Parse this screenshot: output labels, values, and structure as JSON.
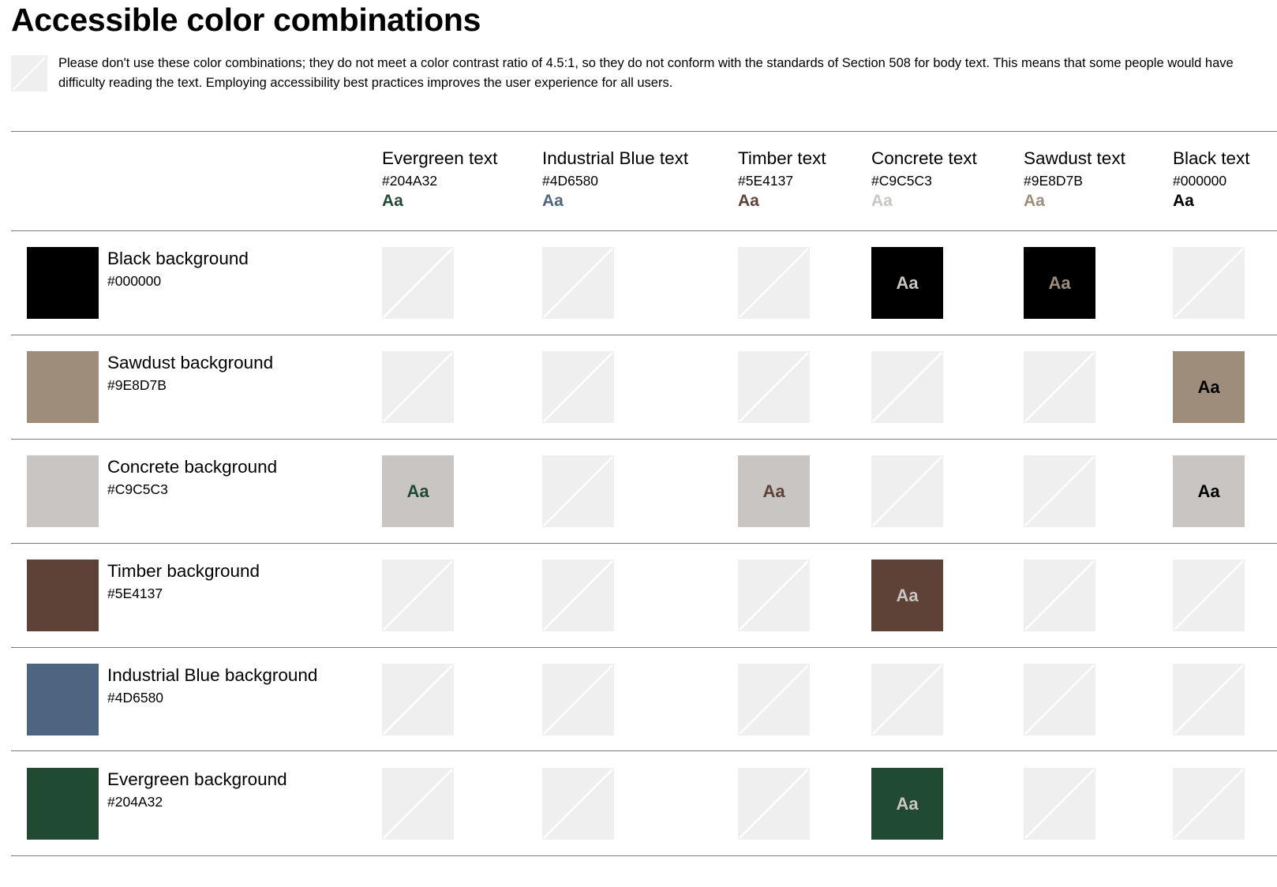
{
  "page": {
    "title": "Accessible color combinations",
    "notice": "Please don't use these color combinations; they do not meet a color contrast ratio of 4.5:1, so they do not conform with the standards of Section 508 for body text. This means that some people would have difficulty reading the text. Employing accessibility best practices improves the user experience for all users.",
    "notice_icon": "not-accessible-swatch-icon"
  },
  "columns": [
    {
      "name": "Evergreen text",
      "hex": "#204A32",
      "sample": "Aa",
      "color": "#204A32"
    },
    {
      "name": "Industrial Blue text",
      "hex": "#4D6580",
      "sample": "Aa",
      "color": "#4D6580"
    },
    {
      "name": "Timber text",
      "hex": "#5E4137",
      "sample": "Aa",
      "color": "#5E4137"
    },
    {
      "name": "Concrete text",
      "hex": "#C9C5C3",
      "sample": "Aa",
      "color": "#C9C5C3"
    },
    {
      "name": "Sawdust text",
      "hex": "#9E8D7B",
      "sample": "Aa",
      "color": "#9E8D7B"
    },
    {
      "name": "Black text",
      "hex": "#000000",
      "sample": "Aa",
      "color": "#000000"
    }
  ],
  "rows": [
    {
      "name": "Black background",
      "hex": "#000000",
      "color": "#000000",
      "cells": [
        {
          "accessible": false
        },
        {
          "accessible": false
        },
        {
          "accessible": false
        },
        {
          "accessible": true,
          "text": "Aa"
        },
        {
          "accessible": true,
          "text": "Aa"
        },
        {
          "accessible": false
        }
      ]
    },
    {
      "name": "Sawdust background",
      "hex": "#9E8D7B",
      "color": "#9E8D7B",
      "cells": [
        {
          "accessible": false
        },
        {
          "accessible": false
        },
        {
          "accessible": false
        },
        {
          "accessible": false
        },
        {
          "accessible": false
        },
        {
          "accessible": true,
          "text": "Aa"
        }
      ]
    },
    {
      "name": "Concrete background",
      "hex": "#C9C5C3",
      "color": "#C9C5C3",
      "cells": [
        {
          "accessible": true,
          "text": "Aa"
        },
        {
          "accessible": false
        },
        {
          "accessible": true,
          "text": "Aa"
        },
        {
          "accessible": false
        },
        {
          "accessible": false
        },
        {
          "accessible": true,
          "text": "Aa"
        }
      ]
    },
    {
      "name": "Timber background",
      "hex": "#5E4137",
      "color": "#5E4137",
      "cells": [
        {
          "accessible": false
        },
        {
          "accessible": false
        },
        {
          "accessible": false
        },
        {
          "accessible": true,
          "text": "Aa"
        },
        {
          "accessible": false
        },
        {
          "accessible": false
        }
      ]
    },
    {
      "name": "Industrial Blue background",
      "hex": "#4D6580",
      "color": "#4D6580",
      "cells": [
        {
          "accessible": false
        },
        {
          "accessible": false
        },
        {
          "accessible": false
        },
        {
          "accessible": false
        },
        {
          "accessible": false
        },
        {
          "accessible": false
        }
      ]
    },
    {
      "name": "Evergreen background",
      "hex": "#204A32",
      "color": "#204A32",
      "cells": [
        {
          "accessible": false
        },
        {
          "accessible": false
        },
        {
          "accessible": false
        },
        {
          "accessible": true,
          "text": "Aa"
        },
        {
          "accessible": false
        },
        {
          "accessible": false
        }
      ]
    }
  ]
}
